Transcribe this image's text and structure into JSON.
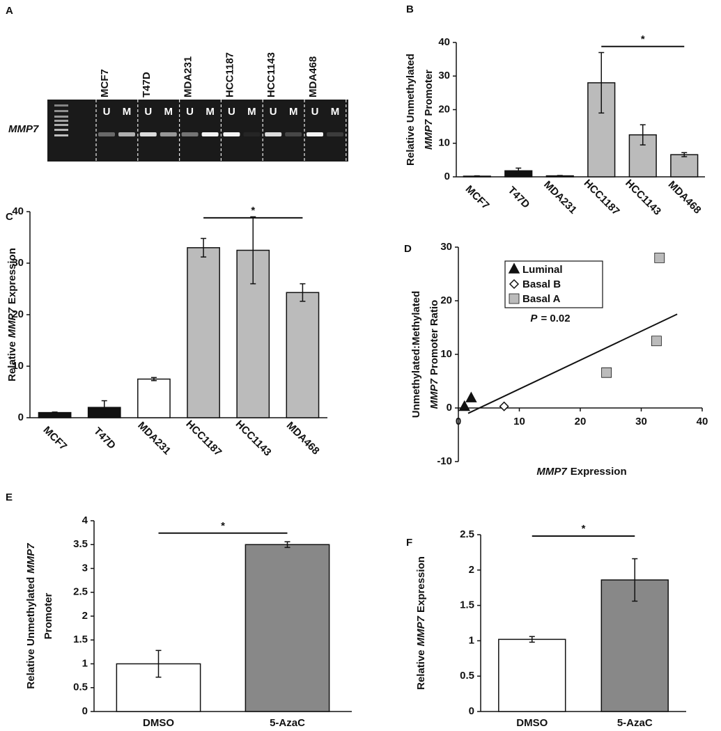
{
  "gel": {
    "panel": "A",
    "gene": "MMP7",
    "lanes": [
      {
        "name": "MCF7",
        "labels": [
          "U",
          "M"
        ]
      },
      {
        "name": "T47D",
        "labels": [
          "U",
          "M"
        ]
      },
      {
        "name": "MDA231",
        "labels": [
          "U",
          "M"
        ]
      },
      {
        "name": "HCC1187",
        "labels": [
          "U",
          "M"
        ]
      },
      {
        "name": "HCC1143",
        "labels": [
          "U",
          "M"
        ]
      },
      {
        "name": "MDA468",
        "labels": [
          "U",
          "M"
        ]
      }
    ]
  },
  "chart_data": [
    {
      "type": "bar",
      "panel": "B",
      "y_label": [
        [
          {
            "text": "Relative Unmethylated"
          }
        ],
        [
          {
            "text": "MMP7",
            "italic": true
          },
          {
            "text": "Promoter"
          }
        ]
      ],
      "categories": [
        "MCF7",
        "T47D",
        "MDA231",
        "HCC1187",
        "HCC1143",
        "MDA468"
      ],
      "values": [
        0.2,
        1.8,
        0.3,
        28,
        12.5,
        6.6
      ],
      "errors": [
        0.1,
        0.8,
        0.1,
        9,
        3,
        0.6
      ],
      "colors": [
        "#111111",
        "#111111",
        "#ffffff",
        "#bbbbbb",
        "#bbbbbb",
        "#bbbbbb"
      ],
      "ylim": [
        0,
        40
      ],
      "yticks": [
        0,
        10,
        20,
        30,
        40
      ],
      "rotate_labels": true,
      "significance": {
        "from": "HCC1187",
        "to": "MDA468",
        "y": 38.8,
        "label": "*"
      }
    },
    {
      "type": "bar",
      "panel": "C",
      "y_label": [
        [
          {
            "text": "Relative"
          },
          {
            "text": "MMP7",
            "italic": true
          },
          {
            "text": "Expression"
          }
        ]
      ],
      "categories": [
        "MCF7",
        "T47D",
        "MDA231",
        "HCC1187",
        "HCC1143",
        "MDA468"
      ],
      "values": [
        1,
        2,
        7.5,
        33,
        32.5,
        24.3
      ],
      "errors": [
        0.1,
        1.3,
        0.3,
        1.8,
        6.5,
        1.7
      ],
      "colors": [
        "#111111",
        "#111111",
        "#ffffff",
        "#bbbbbb",
        "#bbbbbb",
        "#bbbbbb"
      ],
      "ylim": [
        0,
        40
      ],
      "yticks": [
        0,
        10,
        20,
        30,
        40
      ],
      "rotate_labels": true,
      "significance": {
        "from": "HCC1187",
        "to": "MDA468",
        "y": 38.8,
        "label": "*"
      }
    },
    {
      "type": "scatter",
      "panel": "D",
      "y_label": [
        [
          {
            "text": "Unmethylated:Methylated"
          }
        ],
        [
          {
            "text": "MMP7",
            "italic": true
          },
          {
            "text": "Promoter Ratio"
          }
        ]
      ],
      "x_label": [
        {
          "text": "MMP7",
          "italic": true
        },
        {
          "text": "Expression"
        }
      ],
      "xlim": [
        0,
        40
      ],
      "xticks": [
        0,
        10,
        20,
        30,
        40
      ],
      "ylim": [
        -10,
        30
      ],
      "yticks": [
        -10,
        0,
        10,
        20,
        30
      ],
      "series": [
        {
          "name": "Luminal",
          "marker": "triangle",
          "color": "#111111",
          "x": [
            1,
            2.1
          ],
          "y": [
            0.2,
            1.8
          ]
        },
        {
          "name": "Basal B",
          "marker": "diamond",
          "color": "#ffffff",
          "x": [
            7.5
          ],
          "y": [
            0.3
          ]
        },
        {
          "name": "Basal A",
          "marker": "square",
          "color": "#bbbbbb",
          "x": [
            33,
            32.5,
            24.3
          ],
          "y": [
            28,
            12.5,
            6.6
          ]
        }
      ],
      "trendline": {
        "x": [
          1.6,
          35.9
        ],
        "y": [
          -1,
          17.5
        ]
      },
      "annotation": [
        {
          "text": "P",
          "italic": true
        },
        {
          "text": "= 0.02"
        }
      ]
    },
    {
      "type": "bar",
      "panel": "E",
      "y_label": [
        [
          {
            "text": "Relative Unmethylated"
          },
          {
            "text": "MMP7",
            "italic": true
          }
        ],
        [
          {
            "text": "Promoter"
          }
        ]
      ],
      "categories": [
        "DMSO",
        "5-AzaC"
      ],
      "values": [
        1,
        3.5
      ],
      "errors": [
        0.28,
        0.06
      ],
      "colors": [
        "#ffffff",
        "#888888"
      ],
      "ylim": [
        0,
        4
      ],
      "yticks": [
        0,
        0.5,
        1,
        1.5,
        2,
        2.5,
        3,
        3.5,
        4
      ],
      "rotate_labels": false,
      "significance": {
        "from": "DMSO",
        "to": "5-AzaC",
        "y": 3.74,
        "label": "*"
      }
    },
    {
      "type": "bar",
      "panel": "F",
      "y_label": [
        [
          {
            "text": "Relative"
          },
          {
            "text": "MMP7",
            "italic": true
          },
          {
            "text": "Expression"
          }
        ]
      ],
      "categories": [
        "DMSO",
        "5-AzaC"
      ],
      "values": [
        1.02,
        1.86
      ],
      "errors": [
        0.04,
        0.3
      ],
      "colors": [
        "#ffffff",
        "#888888"
      ],
      "ylim": [
        0,
        2.5
      ],
      "yticks": [
        0,
        0.5,
        1,
        1.5,
        2,
        2.5
      ],
      "rotate_labels": false,
      "significance": {
        "from": "DMSO",
        "to": "5-AzaC",
        "y": 2.48,
        "label": "*"
      }
    }
  ]
}
